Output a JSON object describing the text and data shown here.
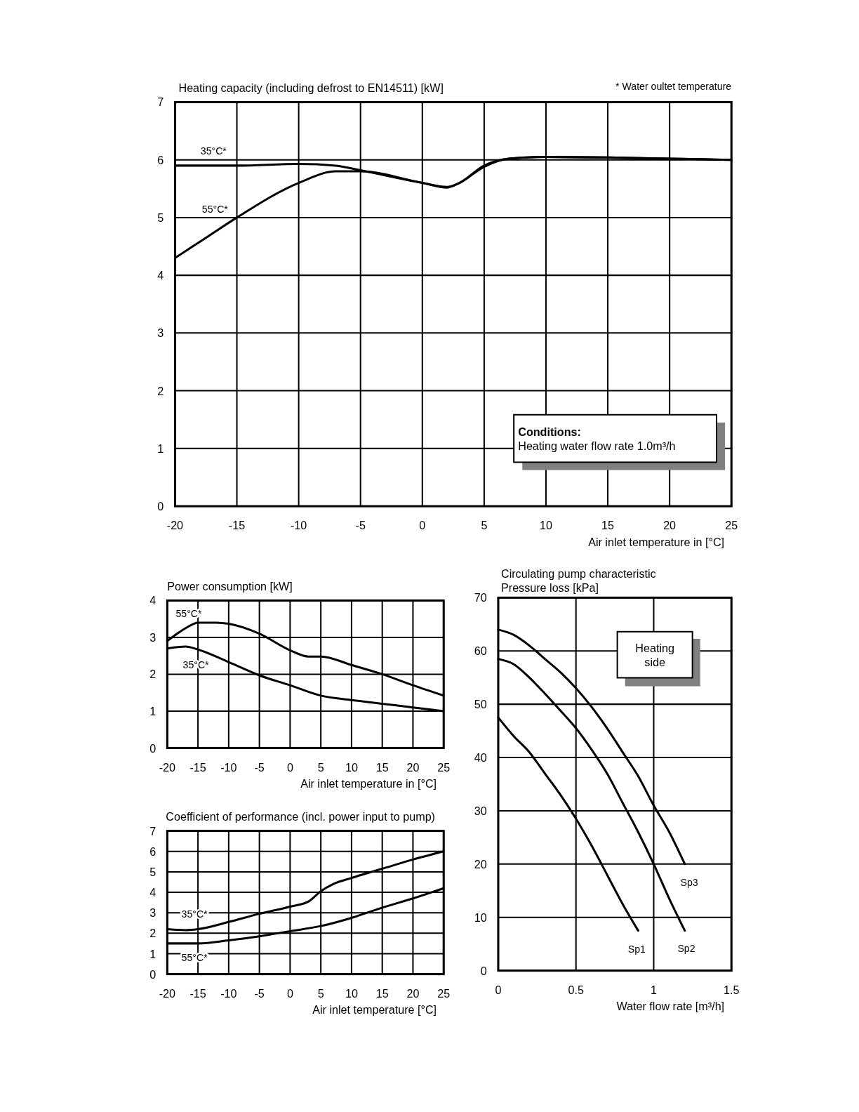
{
  "chart_data": [
    {
      "type": "line",
      "title": "Heating capacity (including defrost to EN14511) [kW]",
      "xlabel": "Air inlet temperature  in [°C]",
      "annotations": [
        "* Water oultet temperature",
        "Conditions:",
        "Heating water flow rate    1.0m³/h"
      ],
      "xlim": [
        -20,
        25
      ],
      "xticks": [
        -20,
        -15,
        -10,
        -5,
        0,
        5,
        10,
        15,
        20,
        25
      ],
      "ylim": [
        0,
        7
      ],
      "yticks": [
        0,
        1,
        2,
        3,
        4,
        5,
        6,
        7
      ],
      "grid": true,
      "series": [
        {
          "name": "35°C*",
          "color": "#000000",
          "x": [
            -20,
            -15,
            -10,
            -7,
            -5,
            0,
            2,
            3,
            5,
            7,
            10,
            15,
            20,
            25
          ],
          "values": [
            5.9,
            5.9,
            5.93,
            5.9,
            5.82,
            5.6,
            5.53,
            5.6,
            5.9,
            6.02,
            6.05,
            6.04,
            6.02,
            6.0
          ]
        },
        {
          "name": "55°C*",
          "color": "#000000",
          "x": [
            -20,
            -17.5,
            -15,
            -10,
            -7,
            -5,
            0,
            2,
            3,
            5,
            7,
            10,
            15,
            20,
            25
          ],
          "values": [
            4.3,
            4.65,
            5.0,
            5.6,
            5.8,
            5.8,
            5.6,
            5.52,
            5.6,
            5.88,
            6.02,
            6.05,
            6.04,
            6.02,
            6.0
          ]
        }
      ]
    },
    {
      "type": "line",
      "title": "Power consumption [kW]",
      "xlabel": "Air inlet temperature  in [°C]",
      "xlim": [
        -20,
        25
      ],
      "xticks": [
        -20,
        -15,
        -10,
        -5,
        0,
        5,
        10,
        15,
        20,
        25
      ],
      "ylim": [
        0,
        4
      ],
      "yticks": [
        0,
        1,
        2,
        3,
        4
      ],
      "grid": true,
      "series": [
        {
          "name": "55°C*",
          "color": "#000000",
          "x": [
            -20,
            -17,
            -15,
            -12,
            -10,
            -5,
            0,
            3,
            5,
            10,
            15,
            20,
            25
          ],
          "values": [
            2.9,
            3.25,
            3.4,
            3.4,
            3.37,
            3.1,
            2.65,
            2.48,
            2.48,
            2.25,
            2.0,
            1.7,
            1.42
          ]
        },
        {
          "name": "35°C*",
          "color": "#000000",
          "x": [
            -20,
            -17,
            -15,
            -10,
            -5,
            0,
            5,
            10,
            15,
            20,
            25
          ],
          "values": [
            2.7,
            2.75,
            2.67,
            2.33,
            1.97,
            1.7,
            1.42,
            1.3,
            1.2,
            1.1,
            1.0
          ]
        }
      ]
    },
    {
      "type": "line",
      "title": "Coefficient of performance (incl. power input to pump)",
      "xlabel": "Air inlet temperature [°C]",
      "xlim": [
        -20,
        25
      ],
      "xticks": [
        -20,
        -15,
        -10,
        -5,
        0,
        5,
        10,
        15,
        20,
        25
      ],
      "ylim": [
        0,
        7
      ],
      "yticks": [
        0,
        1,
        2,
        3,
        4,
        5,
        6,
        7
      ],
      "grid": true,
      "series": [
        {
          "name": "35°C*",
          "color": "#000000",
          "x": [
            -20,
            -17,
            -15,
            -10,
            -5,
            0,
            3,
            5,
            7,
            10,
            15,
            20,
            25
          ],
          "values": [
            2.2,
            2.15,
            2.2,
            2.55,
            2.95,
            3.3,
            3.55,
            4.05,
            4.4,
            4.7,
            5.15,
            5.6,
            6.0
          ]
        },
        {
          "name": "55°C*",
          "color": "#000000",
          "x": [
            -20,
            -15,
            -10,
            -5,
            0,
            5,
            10,
            15,
            20,
            25
          ],
          "values": [
            1.5,
            1.5,
            1.65,
            1.85,
            2.1,
            2.35,
            2.75,
            3.25,
            3.7,
            4.2
          ]
        }
      ]
    },
    {
      "type": "line",
      "title": "Circulating pump characteristic",
      "ylabel": "Pressure  loss [kPa]",
      "xlabel": "Water flow rate [m³/h]",
      "annotations": [
        "Heating side"
      ],
      "xlim": [
        0,
        1.5
      ],
      "xticks": [
        0,
        0.5,
        1,
        1.5
      ],
      "ylim": [
        0,
        70
      ],
      "yticks": [
        0,
        10,
        20,
        30,
        40,
        50,
        60,
        70
      ],
      "grid": true,
      "series": [
        {
          "name": "Sp1",
          "color": "#000000",
          "x": [
            0,
            0.1,
            0.2,
            0.3,
            0.4,
            0.5,
            0.6,
            0.7,
            0.8,
            0.9
          ],
          "values": [
            47.5,
            44,
            41,
            37,
            33,
            28.5,
            23.5,
            18,
            12.5,
            7.5
          ]
        },
        {
          "name": "Sp2",
          "color": "#000000",
          "x": [
            0,
            0.1,
            0.2,
            0.3,
            0.4,
            0.5,
            0.6,
            0.7,
            0.8,
            0.9,
            1.0,
            1.1,
            1.2
          ],
          "values": [
            58.5,
            57.5,
            55,
            52,
            48.8,
            45.5,
            41.5,
            37,
            31.5,
            26,
            20,
            13.5,
            7.5
          ]
        },
        {
          "name": "Sp3",
          "color": "#000000",
          "x": [
            0,
            0.1,
            0.2,
            0.3,
            0.4,
            0.5,
            0.6,
            0.7,
            0.8,
            0.9,
            1.0,
            1.1,
            1.2
          ],
          "values": [
            64,
            63,
            61,
            58.5,
            56,
            53,
            49.5,
            45.5,
            41,
            36.5,
            31,
            26,
            20
          ]
        }
      ]
    }
  ]
}
